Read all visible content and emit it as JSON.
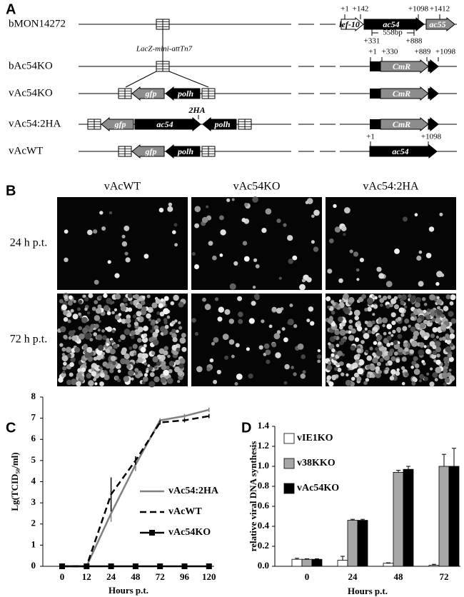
{
  "panel_a": {
    "label": "A",
    "insertion_label": "LacZ-mini-attTn7",
    "constructs": [
      {
        "name": "bMON14272",
        "features": [
          "lef-10",
          "ac54",
          "ac55"
        ],
        "positions": [
          "+1",
          "+142",
          "+1098",
          "+1412",
          "+331",
          "558bp",
          "+888"
        ]
      },
      {
        "name": "bAc54KO",
        "features": [
          "CmR"
        ],
        "positions": [
          "+1",
          "+330",
          "+889",
          "+1098"
        ]
      },
      {
        "name": "vAc54KO",
        "features": [
          "gfp",
          "polh",
          "CmR"
        ]
      },
      {
        "name": "vAc54:2HA",
        "features": [
          "gfp",
          "ac54",
          "2HA",
          "polh",
          "CmR"
        ]
      },
      {
        "name": "vAcWT",
        "features": [
          "gfp",
          "polh",
          "ac54"
        ],
        "positions": [
          "+1",
          "+1098"
        ]
      }
    ]
  },
  "panel_b": {
    "label": "B",
    "columns": [
      "vAcWT",
      "vAc54KO",
      "vAc54:2HA"
    ],
    "rows": [
      "24 h p.t.",
      "72 h p.t."
    ]
  },
  "chart_data": [
    {
      "type": "line",
      "panel_label": "C",
      "x_label": "Hours p.t.",
      "y_label": "Lg(TCID₅₀/ml)",
      "categories": [
        "0",
        "12",
        "24",
        "48",
        "72",
        "96",
        "120"
      ],
      "ylim": [
        0,
        8
      ],
      "yticks": [
        0,
        1,
        2,
        3,
        4,
        5,
        6,
        7,
        8
      ],
      "legend": "right",
      "series": [
        {
          "name": "vAc54:2HA",
          "color": "#808080",
          "line_style": "solid",
          "values": [
            0,
            0,
            2.5,
            4.8,
            6.9,
            7.1,
            7.4
          ],
          "errors": [
            0,
            0,
            0.4,
            0.3,
            0.1,
            0.1,
            0.1
          ]
        },
        {
          "name": "vAcWT",
          "color": "#000000",
          "line_style": "dashed",
          "values": [
            0,
            0,
            3.4,
            5.0,
            6.8,
            6.9,
            7.1
          ],
          "errors": [
            0,
            0,
            0.8,
            0.2,
            0.1,
            0.1,
            0.1
          ]
        },
        {
          "name": "vAc54KO",
          "color": "#000000",
          "line_style": "solid",
          "marker": "square",
          "values": [
            0,
            0,
            0,
            0,
            0,
            0,
            0
          ],
          "errors": [
            0,
            0,
            0,
            0,
            0,
            0,
            0
          ]
        }
      ]
    },
    {
      "type": "bar",
      "panel_label": "D",
      "x_label": "Hours  p.t.",
      "y_label": "relative viral DNA synthesis",
      "categories": [
        "0",
        "24",
        "48",
        "72"
      ],
      "ylim": [
        0,
        1.4
      ],
      "yticks": [
        {
          "value": 0,
          "label": "0.0"
        },
        {
          "value": 0.2,
          "label": "0.2"
        },
        {
          "value": 0.4,
          "label": "0.4"
        },
        {
          "value": 0.6,
          "label": "0.6"
        },
        {
          "value": 0.8,
          "label": "0.8"
        },
        {
          "value": 1.0,
          "label": "1.0"
        },
        {
          "value": 1.2,
          "label": "1.2"
        },
        {
          "value": 1.4,
          "label": "1.4"
        }
      ],
      "legend": "upper left",
      "series": [
        {
          "name": "vIE1KO",
          "color": "#ffffff",
          "values": [
            0.07,
            0.06,
            0.03,
            0.01
          ],
          "errors": [
            0.01,
            0.04,
            0.005,
            0.01
          ]
        },
        {
          "name": "v38KKO",
          "color": "#a6a6a6",
          "values": [
            0.07,
            0.46,
            0.94,
            1.0
          ],
          "errors": [
            0.005,
            0.01,
            0.02,
            0.12
          ]
        },
        {
          "name": "vAc54KO",
          "color": "#000000",
          "values": [
            0.07,
            0.46,
            0.97,
            1.0
          ],
          "errors": [
            0.005,
            0.01,
            0.03,
            0.18
          ]
        }
      ]
    }
  ]
}
